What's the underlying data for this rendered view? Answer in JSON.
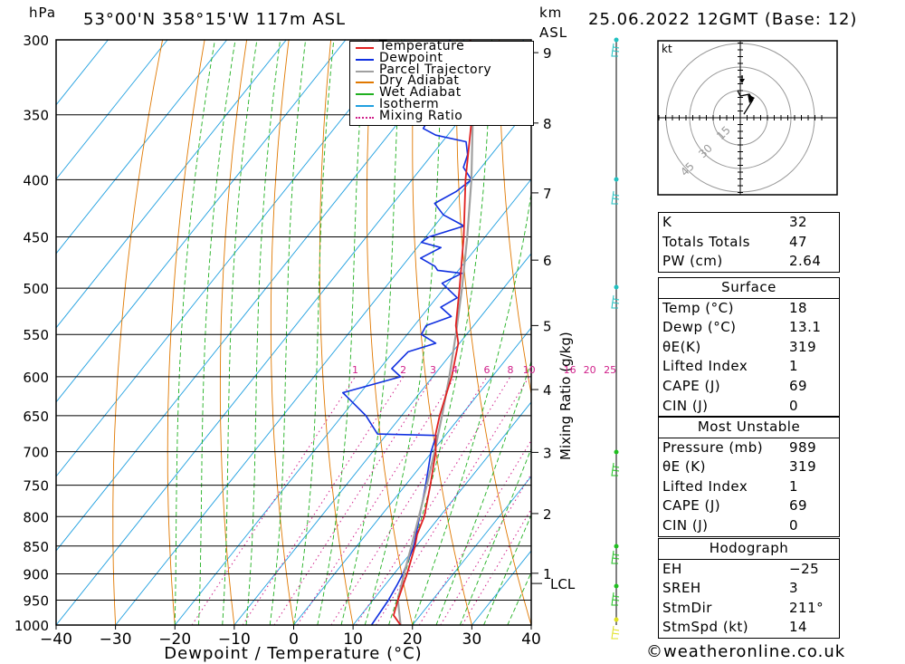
{
  "header": {
    "location": "53°00'N 358°15'W 117m ASL",
    "datetime": "25.06.2022 12GMT (Base: 12)",
    "pressure_unit": "hPa",
    "km_unit": "km",
    "asl_unit": "ASL"
  },
  "chart_data": {
    "type": "line",
    "title": "",
    "xlabel": "Dewpoint / Temperature (°C)",
    "ylabel": "hPa",
    "xlim": [
      -40,
      40
    ],
    "ylim": [
      1000,
      300
    ],
    "skew": "skew-T log-p",
    "x_ticks": [
      "−40",
      "−30",
      "−20",
      "−10",
      "0",
      "10",
      "20",
      "30",
      "40"
    ],
    "pressure_levels": [
      300,
      350,
      400,
      450,
      500,
      550,
      600,
      650,
      700,
      750,
      800,
      850,
      900,
      950,
      1000
    ],
    "km_ticks": [
      {
        "km": "1",
        "p": 899
      },
      {
        "km": "2",
        "p": 795
      },
      {
        "km": "3",
        "p": 701
      },
      {
        "km": "4",
        "p": 616
      },
      {
        "km": "5",
        "p": 540
      },
      {
        "km": "6",
        "p": 472
      },
      {
        "km": "7",
        "p": 411
      },
      {
        "km": "8",
        "p": 356
      },
      {
        "km": "9",
        "p": 308
      }
    ],
    "lcl": {
      "label": "LCL",
      "p": 918
    },
    "mixing_ratio_label": "Mixing Ratio (g/kg)",
    "mixing_ratio_values": [
      "1",
      "2",
      "3",
      "4",
      "6",
      "8",
      "10",
      "16",
      "20",
      "25"
    ],
    "legend": {
      "placement": "top-right",
      "entries": [
        {
          "name": "Temperature",
          "color": "#e02020",
          "style": "solid"
        },
        {
          "name": "Dewpoint",
          "color": "#1030e0",
          "style": "solid"
        },
        {
          "name": "Parcel Trajectory",
          "color": "#a0a0a0",
          "style": "solid"
        },
        {
          "name": "Dry Adiabat",
          "color": "#e07800",
          "style": "solid"
        },
        {
          "name": "Wet Adiabat",
          "color": "#20b020",
          "style": "solid"
        },
        {
          "name": "Isotherm",
          "color": "#20a0e0",
          "style": "solid"
        },
        {
          "name": "Mixing Ratio",
          "color": "#d0208a",
          "style": "dotted"
        }
      ]
    },
    "series": [
      {
        "name": "Temperature",
        "color": "#e02020",
        "points": [
          [
            1000,
            18
          ],
          [
            980,
            15.5
          ],
          [
            950,
            14.2
          ],
          [
            920,
            13
          ],
          [
            900,
            12.2
          ],
          [
            850,
            9.8
          ],
          [
            830,
            8.6
          ],
          [
            800,
            7.4
          ],
          [
            750,
            4.2
          ],
          [
            700,
            0.6
          ],
          [
            675,
            -1.8
          ],
          [
            650,
            -3.6
          ],
          [
            600,
            -6.8
          ],
          [
            560,
            -10.2
          ],
          [
            540,
            -13.0
          ],
          [
            500,
            -17.4
          ],
          [
            450,
            -23.6
          ],
          [
            400,
            -31.0
          ],
          [
            360,
            -37.0
          ],
          [
            330,
            -42.0
          ],
          [
            310,
            -47.0
          ],
          [
            300,
            -49.0
          ]
        ]
      },
      {
        "name": "Dewpoint",
        "color": "#1030e0",
        "points": [
          [
            1000,
            13.1
          ],
          [
            950,
            12.6
          ],
          [
            920,
            12.0
          ],
          [
            900,
            11.5
          ],
          [
            850,
            9.6
          ],
          [
            800,
            6.6
          ],
          [
            750,
            3.4
          ],
          [
            700,
            -0.2
          ],
          [
            677,
            -1.5
          ],
          [
            675,
            -11.6
          ],
          [
            650,
            -16.0
          ],
          [
            620,
            -23.0
          ],
          [
            600,
            -15.4
          ],
          [
            590,
            -18.0
          ],
          [
            570,
            -17.5
          ],
          [
            560,
            -14.0
          ],
          [
            550,
            -17.6
          ],
          [
            540,
            -18.0
          ],
          [
            530,
            -15.0
          ],
          [
            520,
            -18.0
          ],
          [
            510,
            -16.5
          ],
          [
            500,
            -19.5
          ],
          [
            495,
            -21.0
          ],
          [
            485,
            -19.0
          ],
          [
            482,
            -23.5
          ],
          [
            478,
            -24.5
          ],
          [
            470,
            -28.0
          ],
          [
            460,
            -26.0
          ],
          [
            455,
            -30.0
          ],
          [
            450,
            -29.5
          ],
          [
            440,
            -25.0
          ],
          [
            430,
            -30.0
          ],
          [
            420,
            -33.0
          ],
          [
            410,
            -31.0
          ],
          [
            400,
            -30.0
          ],
          [
            390,
            -33.0
          ],
          [
            380,
            -34.0
          ],
          [
            370,
            -36.0
          ],
          [
            365,
            -42.0
          ],
          [
            360,
            -45.0
          ],
          [
            350,
            -45.5
          ],
          [
            330,
            -47.0
          ],
          [
            320,
            -50.0
          ],
          [
            315,
            -50.5
          ],
          [
            305,
            -50.5
          ],
          [
            300,
            -52.5
          ]
        ]
      },
      {
        "name": "Parcel Trajectory",
        "color": "#a0a0a0",
        "points": [
          [
            1000,
            18
          ],
          [
            950,
            14.2
          ],
          [
            918,
            12.6
          ],
          [
            900,
            11.7
          ],
          [
            850,
            9.2
          ],
          [
            800,
            6.5
          ],
          [
            750,
            3.6
          ],
          [
            700,
            0.4
          ],
          [
            650,
            -3.2
          ],
          [
            600,
            -7.2
          ],
          [
            550,
            -11.8
          ],
          [
            500,
            -17.0
          ],
          [
            450,
            -23.0
          ],
          [
            400,
            -30.0
          ],
          [
            350,
            -38.5
          ],
          [
            300,
            -49.0
          ]
        ]
      }
    ]
  },
  "hodograph": {
    "unit": "kt",
    "ring_labels": [
      "15",
      "30",
      "45"
    ]
  },
  "indices": {
    "basic": [
      {
        "label": "K",
        "value": "32"
      },
      {
        "label": "Totals Totals",
        "value": "47"
      },
      {
        "label": "PW (cm)",
        "value": "2.64"
      }
    ],
    "surface_title": "Surface",
    "surface": [
      {
        "label": "Temp (°C)",
        "value": "18"
      },
      {
        "label": "Dewp (°C)",
        "value": "13.1"
      },
      {
        "label": "θE(K)",
        "value": "319"
      },
      {
        "label": "Lifted Index",
        "value": "1"
      },
      {
        "label": "CAPE (J)",
        "value": "69"
      },
      {
        "label": "CIN (J)",
        "value": "0"
      }
    ],
    "mu_title": "Most Unstable",
    "mu": [
      {
        "label": "Pressure (mb)",
        "value": "989"
      },
      {
        "label": "θE (K)",
        "value": "319"
      },
      {
        "label": "Lifted Index",
        "value": "1"
      },
      {
        "label": "CAPE (J)",
        "value": "69"
      },
      {
        "label": "CIN (J)",
        "value": "0"
      }
    ],
    "hodo_title": "Hodograph",
    "hodo": [
      {
        "label": "EH",
        "value": "−25"
      },
      {
        "label": "SREH",
        "value": "3"
      },
      {
        "label": "StmDir",
        "value": "211°"
      },
      {
        "label": "StmSpd (kt)",
        "value": "14"
      }
    ]
  },
  "credit": "©weatheronline.co.uk"
}
